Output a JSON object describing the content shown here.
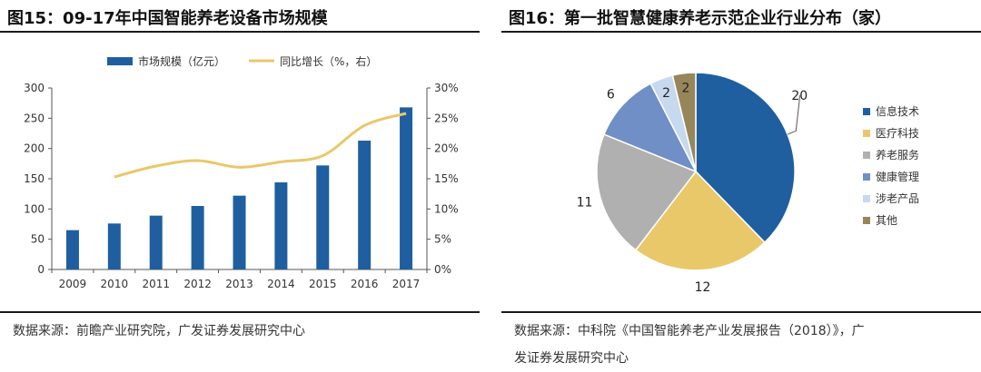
{
  "left": {
    "title": "图15：09-17年中国智能养老设备市场规模",
    "source": "数据来源：前瞻产业研究院，广发证券发展研究中心"
  },
  "right": {
    "title": "图16：第一批智慧健康养老示范企业行业分布（家）",
    "source_line1": "数据来源：中科院《中国智能养老产业发展报告（2018）》，广",
    "source_line2": "发证券发展研究中心"
  },
  "chart_data": [
    {
      "type": "bar",
      "categories": [
        "2009",
        "2010",
        "2011",
        "2012",
        "2013",
        "2014",
        "2015",
        "2016",
        "2017"
      ],
      "series": [
        {
          "name": "市场规模（亿元）",
          "type": "bar",
          "axis": "left",
          "color": "#1f5fa0",
          "values": [
            65,
            76,
            89,
            105,
            122,
            144,
            172,
            213,
            268
          ]
        },
        {
          "name": "同比增长（%，右）",
          "type": "line",
          "axis": "right",
          "color": "#e9c86a",
          "values": [
            null,
            15.3,
            17.1,
            18.0,
            16.9,
            17.8,
            18.8,
            23.8,
            25.8
          ]
        }
      ],
      "ylim": [
        0,
        300
      ],
      "yticks": [
        "0",
        "50",
        "100",
        "150",
        "200",
        "250",
        "300"
      ],
      "y2lim": [
        0,
        30
      ],
      "y2ticks": [
        "0%",
        "5%",
        "10%",
        "15%",
        "20%",
        "25%",
        "30%"
      ],
      "legend_position": "top"
    },
    {
      "type": "pie",
      "labels": [
        "信息技术",
        "医疗科技",
        "养老服务",
        "健康管理",
        "涉老产品",
        "其他"
      ],
      "values": [
        20,
        12,
        11,
        6,
        2,
        2
      ],
      "colors": [
        "#1f5fa0",
        "#e9c86a",
        "#b0b0b0",
        "#6f8fc6",
        "#c6d9ef",
        "#96865a"
      ],
      "legend_position": "right"
    }
  ]
}
